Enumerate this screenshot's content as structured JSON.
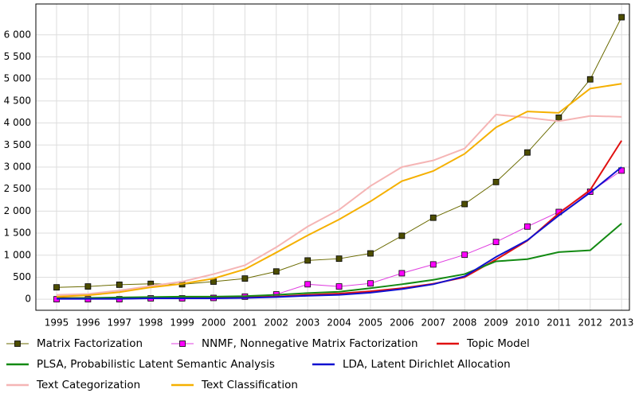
{
  "chart_data": {
    "type": "line",
    "x": [
      1995,
      1996,
      1997,
      1998,
      1999,
      2000,
      2001,
      2002,
      2003,
      2004,
      2005,
      2006,
      2007,
      2008,
      2009,
      2010,
      2011,
      2012,
      2013
    ],
    "xlim": [
      1994.34,
      2013.25
    ],
    "xticks": [
      1995,
      1996,
      1997,
      1998,
      1999,
      2000,
      2001,
      2002,
      2003,
      2004,
      2005,
      2006,
      2007,
      2008,
      2009,
      2010,
      2011,
      2012,
      2013
    ],
    "ylim": [
      -250,
      6700
    ],
    "yticks": [
      0,
      500,
      {
        "value": 1000,
        "label": "1 000"
      },
      {
        "value": 1500,
        "label": "1 500"
      },
      {
        "value": 2000,
        "label": "2 000"
      },
      {
        "value": 2500,
        "label": "2 500"
      },
      {
        "value": 3000,
        "label": "3 000"
      },
      {
        "value": 3500,
        "label": "3 500"
      },
      {
        "value": 4000,
        "label": "4 000"
      },
      {
        "value": 4500,
        "label": "4 500"
      },
      {
        "value": 5000,
        "label": "5 000"
      },
      {
        "value": 5500,
        "label": "5 500"
      },
      {
        "value": 6000,
        "label": "6 000"
      }
    ],
    "grid": true,
    "series": [
      {
        "name": "Matrix Factorization",
        "color": "#6b6b00",
        "marker": "square",
        "marker_color": "#4d4d00",
        "values": [
          270,
          290,
          330,
          350,
          340,
          400,
          470,
          630,
          880,
          920,
          1040,
          1440,
          1850,
          2160,
          2660,
          3330,
          4120,
          4990,
          6400
        ]
      },
      {
        "name": "NNMF, Nonnegative Matrix Factorization",
        "color": "#e040e0",
        "marker": "square",
        "marker_color": "#ff00ff",
        "values": [
          0,
          0,
          0,
          20,
          20,
          30,
          60,
          110,
          340,
          290,
          360,
          590,
          790,
          1010,
          1300,
          1650,
          1980,
          2440,
          2920
        ]
      },
      {
        "name": "Topic Model",
        "color": "#e01010",
        "values": [
          30,
          30,
          30,
          40,
          40,
          40,
          50,
          60,
          100,
          130,
          180,
          250,
          350,
          500,
          900,
          1330,
          1950,
          2480,
          3600
        ]
      },
      {
        "name": "PLSA, Probabilistic Latent Semantic Analysis",
        "color": "#138a13",
        "values": [
          20,
          30,
          40,
          50,
          60,
          60,
          70,
          100,
          140,
          170,
          250,
          340,
          440,
          570,
          860,
          910,
          1070,
          1110,
          1720
        ]
      },
      {
        "name": "LDA, Latent Dirichlet Allocation",
        "color": "#1010d0",
        "values": [
          10,
          10,
          10,
          20,
          20,
          20,
          30,
          50,
          80,
          100,
          150,
          230,
          340,
          520,
          960,
          1340,
          1900,
          2420,
          3000
        ]
      },
      {
        "name": "Text Categorization",
        "color": "#f5b5b5",
        "values": [
          100,
          120,
          200,
          300,
          400,
          570,
          770,
          1180,
          1650,
          2030,
          2570,
          3000,
          3150,
          3420,
          4190,
          4120,
          4040,
          4160,
          4140
        ]
      },
      {
        "name": "Text Classification",
        "color": "#f5b000",
        "values": [
          60,
          90,
          160,
          270,
          350,
          470,
          680,
          1060,
          1450,
          1810,
          2220,
          2680,
          2910,
          3300,
          3900,
          4260,
          4230,
          4780,
          4890
        ]
      }
    ]
  }
}
